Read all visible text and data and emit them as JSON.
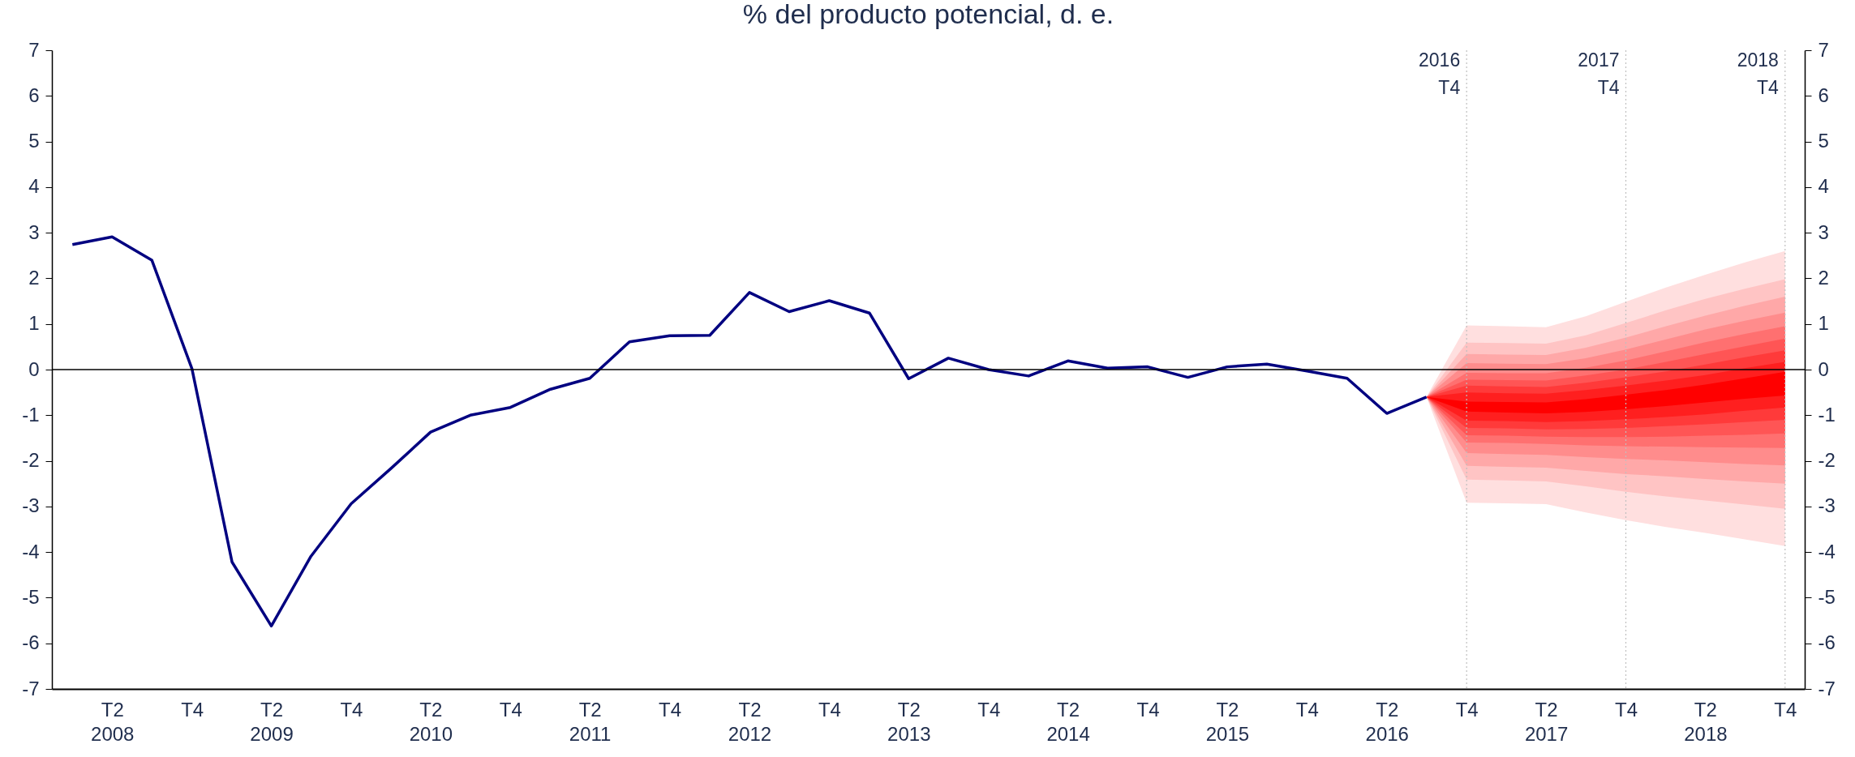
{
  "chart_data": {
    "type": "line",
    "title": "% del producto potencial, d. e.",
    "xlim": [
      "2007-11-15",
      "2018-11-15"
    ],
    "xticks": [
      {
        "value": "2008-04",
        "label": "T2\n2008"
      },
      {
        "value": "2008-10",
        "label": "T4"
      },
      {
        "value": "2009-04",
        "label": "T2\n2009"
      },
      {
        "value": "2009-10",
        "label": "T4"
      },
      {
        "value": "2010-04",
        "label": "T2\n2010"
      },
      {
        "value": "2010-10",
        "label": "T4"
      },
      {
        "value": "2011-04",
        "label": "T2\n2011"
      },
      {
        "value": "2011-10",
        "label": "T4"
      },
      {
        "value": "2012-04",
        "label": "T2\n2012"
      },
      {
        "value": "2012-10",
        "label": "T4"
      },
      {
        "value": "2013-04",
        "label": "T2\n2013"
      },
      {
        "value": "2013-10",
        "label": "T4"
      },
      {
        "value": "2014-04",
        "label": "T2\n2014"
      },
      {
        "value": "2014-10",
        "label": "T4"
      },
      {
        "value": "2015-04",
        "label": "T2\n2015"
      },
      {
        "value": "2015-10",
        "label": "T4"
      },
      {
        "value": "2016-04",
        "label": "T2\n2016"
      },
      {
        "value": "2016-10",
        "label": "T4"
      },
      {
        "value": "2017-04",
        "label": "T2\n2017"
      },
      {
        "value": "2017-10",
        "label": "T4"
      },
      {
        "value": "2018-04",
        "label": "T2\n2018"
      },
      {
        "value": "2018-10",
        "label": "T4"
      }
    ],
    "ylim": [
      -7,
      7
    ],
    "yticks": [
      -7,
      -6,
      -5,
      -4,
      -3,
      -2,
      -1,
      0,
      1,
      2,
      3,
      4,
      5,
      6,
      7
    ],
    "y2lim": [
      -7,
      7
    ],
    "y2ticks": [
      -7,
      -6,
      -5,
      -4,
      -3,
      -2,
      -1,
      0,
      1,
      2,
      3,
      4,
      5,
      6,
      7
    ],
    "grid": false,
    "line_style": "solid",
    "ref_lines": [
      {
        "axis": "y",
        "value": 0,
        "color": "#000000"
      },
      {
        "axis": "x",
        "value": "2016-10",
        "label": "2016\nT4",
        "color": "#bfbfbf",
        "line_style": "dotted"
      },
      {
        "axis": "x",
        "value": "2017-10",
        "label": "2017\nT4",
        "color": "#bfbfbf",
        "line_style": "dotted"
      },
      {
        "axis": "x",
        "value": "2018-10",
        "label": "2018\nT4",
        "color": "#bfbfbf",
        "line_style": "dotted"
      }
    ],
    "series": [
      {
        "color": "#ffdfdf",
        "x": [
          "2016-07",
          "2016-10",
          "2017-01",
          "2017-04",
          "2017-07",
          "2017-10",
          "2018-01",
          "2018-04",
          "2018-07",
          "2018-10"
        ],
        "values": [
          null,
          null,
          null,
          null,
          null,
          null,
          null,
          null,
          null,
          null
        ],
        "lower": [
          -0.6,
          -2.92,
          -2.93,
          -2.95,
          -3.13,
          -3.3,
          -3.45,
          -3.58,
          -3.72,
          -3.87
        ],
        "upper": [
          -0.6,
          0.97,
          0.95,
          0.93,
          1.17,
          1.49,
          1.8,
          2.08,
          2.35,
          2.6
        ]
      },
      {
        "color": "#ffc4c4",
        "x": [
          "2016-07",
          "2016-10",
          "2017-01",
          "2017-04",
          "2017-07",
          "2017-10",
          "2018-01",
          "2018-04",
          "2018-07",
          "2018-10"
        ],
        "values": [
          null,
          null,
          null,
          null,
          null,
          null,
          null,
          null,
          null,
          null
        ],
        "lower": [
          -0.6,
          -2.41,
          -2.43,
          -2.45,
          -2.56,
          -2.68,
          -2.78,
          -2.87,
          -2.96,
          -3.05
        ],
        "upper": [
          -0.6,
          0.59,
          0.58,
          0.57,
          0.75,
          1.02,
          1.3,
          1.55,
          1.77,
          1.98
        ]
      },
      {
        "color": "#ffa8a8",
        "x": [
          "2016-07",
          "2016-10",
          "2017-01",
          "2017-04",
          "2017-07",
          "2017-10",
          "2018-01",
          "2018-04",
          "2018-07",
          "2018-10"
        ],
        "values": [
          null,
          null,
          null,
          null,
          null,
          null,
          null,
          null,
          null,
          null
        ],
        "lower": [
          -0.6,
          -2.11,
          -2.13,
          -2.15,
          -2.22,
          -2.29,
          -2.34,
          -2.4,
          -2.45,
          -2.5
        ],
        "upper": [
          -0.6,
          0.34,
          0.33,
          0.32,
          0.48,
          0.7,
          0.95,
          1.18,
          1.4,
          1.6
        ]
      },
      {
        "color": "#ff8c8c",
        "x": [
          "2016-07",
          "2016-10",
          "2017-01",
          "2017-04",
          "2017-07",
          "2017-10",
          "2018-01",
          "2018-04",
          "2018-07",
          "2018-10"
        ],
        "values": [
          null,
          null,
          null,
          null,
          null,
          null,
          null,
          null,
          null,
          null
        ],
        "lower": [
          -0.6,
          -1.83,
          -1.85,
          -1.87,
          -1.92,
          -1.96,
          -1.99,
          -2.03,
          -2.07,
          -2.1
        ],
        "upper": [
          -0.6,
          0.14,
          0.13,
          0.12,
          0.25,
          0.44,
          0.66,
          0.88,
          1.07,
          1.25
        ]
      },
      {
        "color": "#ff7070",
        "x": [
          "2016-07",
          "2016-10",
          "2017-01",
          "2017-04",
          "2017-07",
          "2017-10",
          "2018-01",
          "2018-04",
          "2018-07",
          "2018-10"
        ],
        "values": [
          null,
          null,
          null,
          null,
          null,
          null,
          null,
          null,
          null,
          null
        ],
        "lower": [
          -0.6,
          -1.6,
          -1.61,
          -1.63,
          -1.66,
          -1.68,
          -1.69,
          -1.7,
          -1.71,
          -1.72
        ],
        "upper": [
          -0.6,
          -0.07,
          -0.08,
          -0.08,
          0.04,
          0.2,
          0.4,
          0.6,
          0.78,
          0.95
        ]
      },
      {
        "color": "#ff5555",
        "x": [
          "2016-07",
          "2016-10",
          "2017-01",
          "2017-04",
          "2017-07",
          "2017-10",
          "2018-01",
          "2018-04",
          "2018-07",
          "2018-10"
        ],
        "values": [
          null,
          null,
          null,
          null,
          null,
          null,
          null,
          null,
          null,
          null
        ],
        "lower": [
          -0.6,
          -1.44,
          -1.45,
          -1.47,
          -1.48,
          -1.48,
          -1.47,
          -1.45,
          -1.43,
          -1.4
        ],
        "upper": [
          -0.6,
          -0.22,
          -0.23,
          -0.24,
          -0.13,
          0.0,
          0.17,
          0.34,
          0.51,
          0.68
        ]
      },
      {
        "color": "#ff3a3a",
        "x": [
          "2016-07",
          "2016-10",
          "2017-01",
          "2017-04",
          "2017-07",
          "2017-10",
          "2018-01",
          "2018-04",
          "2018-07",
          "2018-10"
        ],
        "values": [
          null,
          null,
          null,
          null,
          null,
          null,
          null,
          null,
          null,
          null
        ],
        "lower": [
          -0.6,
          -1.28,
          -1.29,
          -1.31,
          -1.3,
          -1.28,
          -1.24,
          -1.2,
          -1.15,
          -1.1
        ],
        "upper": [
          -0.6,
          -0.35,
          -0.37,
          -0.38,
          -0.29,
          -0.17,
          -0.04,
          0.11,
          0.27,
          0.42
        ]
      },
      {
        "color": "#ff1f1f",
        "x": [
          "2016-07",
          "2016-10",
          "2017-01",
          "2017-04",
          "2017-07",
          "2017-10",
          "2018-01",
          "2018-04",
          "2018-07",
          "2018-10"
        ],
        "values": [
          null,
          null,
          null,
          null,
          null,
          null,
          null,
          null,
          null,
          null
        ],
        "lower": [
          -0.6,
          -1.12,
          -1.13,
          -1.15,
          -1.13,
          -1.09,
          -1.04,
          -0.98,
          -0.9,
          -0.83
        ],
        "upper": [
          -0.6,
          -0.5,
          -0.52,
          -0.53,
          -0.45,
          -0.35,
          -0.24,
          -0.12,
          0.03,
          0.17
        ]
      },
      {
        "color": "#ff0000",
        "x": [
          "2016-07",
          "2016-10",
          "2017-01",
          "2017-04",
          "2017-07",
          "2017-10",
          "2018-01",
          "2018-04",
          "2018-07",
          "2018-10"
        ],
        "values": [
          null,
          null,
          null,
          null,
          null,
          null,
          null,
          null,
          null,
          null
        ],
        "lower": [
          -0.6,
          -0.92,
          -0.94,
          -0.96,
          -0.93,
          -0.87,
          -0.8,
          -0.72,
          -0.64,
          -0.57
        ],
        "upper": [
          -0.6,
          -0.7,
          -0.71,
          -0.72,
          -0.65,
          -0.55,
          -0.45,
          -0.33,
          -0.19,
          -0.05
        ]
      },
      {
        "color": "#000080",
        "x": [
          "2008-01",
          "2008-04",
          "2008-07",
          "2008-10",
          "2009-01",
          "2009-04",
          "2009-07",
          "2009-10",
          "2010-01",
          "2010-04",
          "2010-07",
          "2010-10",
          "2011-01",
          "2011-04",
          "2011-07",
          "2011-10",
          "2012-01",
          "2012-04",
          "2012-07",
          "2012-10",
          "2013-01",
          "2013-04",
          "2013-07",
          "2013-10",
          "2014-01",
          "2014-04",
          "2014-07",
          "2014-10",
          "2015-01",
          "2015-04",
          "2015-07",
          "2015-10",
          "2016-01",
          "2016-04",
          "2016-07"
        ],
        "values": [
          2.74,
          2.91,
          2.4,
          0.02,
          -4.22,
          -5.62,
          -4.09,
          -2.94,
          -2.16,
          -1.37,
          -1.0,
          -0.83,
          -0.43,
          -0.19,
          0.61,
          0.74,
          0.75,
          1.69,
          1.27,
          1.51,
          1.24,
          -0.2,
          0.25,
          0.0,
          -0.14,
          0.19,
          0.03,
          0.06,
          -0.17,
          0.06,
          0.12,
          -0.03,
          -0.19,
          -0.96,
          -0.6
        ]
      }
    ]
  }
}
